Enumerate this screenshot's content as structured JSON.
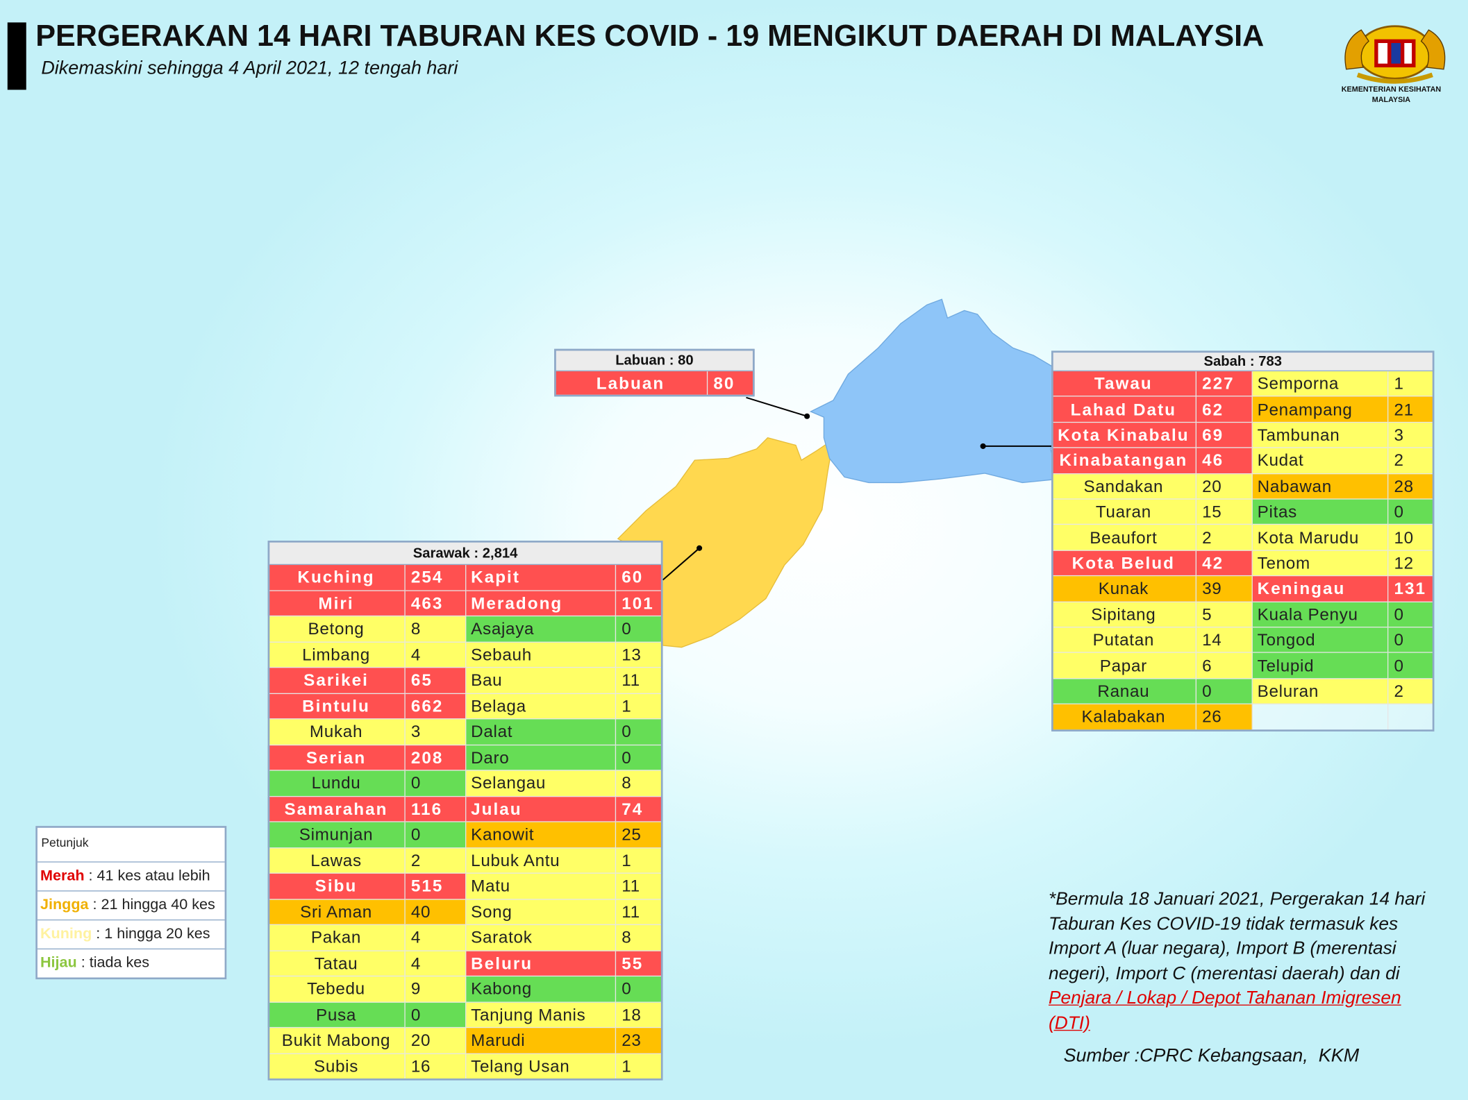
{
  "header": {
    "title": "PERGERAKAN 14 HARI TABURAN KES COVID - 19 MENGIKUT DAERAH DI MALAYSIA",
    "subtitle": "Dikemaskini sehingga 4 April 2021, 12 tengah hari",
    "logo_text": [
      "KEMENTERIAN KESIHATAN",
      "MALAYSIA"
    ]
  },
  "labuan": {
    "header": "Labuan : 80",
    "rows": [
      {
        "left": {
          "district": "Labuan",
          "cases": 80,
          "color": "#ff5050"
        }
      }
    ]
  },
  "sabah": {
    "header": "Sabah : 783",
    "rows": [
      {
        "left": {
          "district": "Tawau",
          "cases": 227,
          "color": "#ff5050"
        },
        "right": {
          "district": "Semporna",
          "cases": 1,
          "color": "#ffff66"
        }
      },
      {
        "left": {
          "district": "Lahad Datu",
          "cases": 62,
          "color": "#ff5050"
        },
        "right": {
          "district": "Penampang",
          "cases": 21,
          "color": "#ffc000"
        }
      },
      {
        "left": {
          "district": "Kota Kinabalu",
          "cases": 69,
          "color": "#ff5050"
        },
        "right": {
          "district": "Tambunan",
          "cases": 3,
          "color": "#ffff66"
        }
      },
      {
        "left": {
          "district": "Kinabatangan",
          "cases": 46,
          "color": "#ff5050"
        },
        "right": {
          "district": "Kudat",
          "cases": 2,
          "color": "#ffff66"
        }
      },
      {
        "left": {
          "district": "Sandakan",
          "cases": 20,
          "color": "#ffff66"
        },
        "right": {
          "district": "Nabawan",
          "cases": 28,
          "color": "#ffc000"
        }
      },
      {
        "left": {
          "district": "Tuaran",
          "cases": 15,
          "color": "#ffff66"
        },
        "right": {
          "district": "Pitas",
          "cases": 0,
          "color": "#66dd55"
        }
      },
      {
        "left": {
          "district": "Beaufort",
          "cases": 2,
          "color": "#ffff66"
        },
        "right": {
          "district": "Kota Marudu",
          "cases": 10,
          "color": "#ffff66"
        }
      },
      {
        "left": {
          "district": "Kota Belud",
          "cases": 42,
          "color": "#ff5050"
        },
        "right": {
          "district": "Tenom",
          "cases": 12,
          "color": "#ffff66"
        }
      },
      {
        "left": {
          "district": "Kunak",
          "cases": 39,
          "color": "#ffc000"
        },
        "right": {
          "district": "Keningau",
          "cases": 131,
          "color": "#ff5050"
        }
      },
      {
        "left": {
          "district": "Sipitang",
          "cases": 5,
          "color": "#ffff66"
        },
        "right": {
          "district": "Kuala Penyu",
          "cases": 0,
          "color": "#66dd55"
        }
      },
      {
        "left": {
          "district": "Putatan",
          "cases": 14,
          "color": "#ffff66"
        },
        "right": {
          "district": "Tongod",
          "cases": 0,
          "color": "#66dd55"
        }
      },
      {
        "left": {
          "district": "Papar",
          "cases": 6,
          "color": "#ffff66"
        },
        "right": {
          "district": "Telupid",
          "cases": 0,
          "color": "#66dd55"
        }
      },
      {
        "left": {
          "district": "Ranau",
          "cases": 0,
          "color": "#66dd55"
        },
        "right": {
          "district": "Beluran",
          "cases": 2,
          "color": "#ffff66"
        }
      },
      {
        "left": {
          "district": "Kalabakan",
          "cases": 26,
          "color": "#ffc000"
        }
      }
    ]
  },
  "sarawak": {
    "header": "Sarawak : 2,814",
    "rows": [
      {
        "left": {
          "district": "Kuching",
          "cases": 254,
          "color": "#ff5050"
        },
        "right": {
          "district": "Kapit",
          "cases": 60,
          "color": "#ff5050"
        }
      },
      {
        "left": {
          "district": "Miri",
          "cases": 463,
          "color": "#ff5050"
        },
        "right": {
          "district": "Meradong",
          "cases": 101,
          "color": "#ff5050"
        }
      },
      {
        "left": {
          "district": "Betong",
          "cases": 8,
          "color": "#ffff66"
        },
        "right": {
          "district": "Asajaya",
          "cases": 0,
          "color": "#66dd55"
        }
      },
      {
        "left": {
          "district": "Limbang",
          "cases": 4,
          "color": "#ffff66"
        },
        "right": {
          "district": "Sebauh",
          "cases": 13,
          "color": "#ffff66"
        }
      },
      {
        "left": {
          "district": "Sarikei",
          "cases": 65,
          "color": "#ff5050"
        },
        "right": {
          "district": "Bau",
          "cases": 11,
          "color": "#ffff66"
        }
      },
      {
        "left": {
          "district": "Bintulu",
          "cases": 662,
          "color": "#ff5050"
        },
        "right": {
          "district": "Belaga",
          "cases": 1,
          "color": "#ffff66"
        }
      },
      {
        "left": {
          "district": "Mukah",
          "cases": 3,
          "color": "#ffff66"
        },
        "right": {
          "district": "Dalat",
          "cases": 0,
          "color": "#66dd55"
        }
      },
      {
        "left": {
          "district": "Serian",
          "cases": 208,
          "color": "#ff5050"
        },
        "right": {
          "district": "Daro",
          "cases": 0,
          "color": "#66dd55"
        }
      },
      {
        "left": {
          "district": "Lundu",
          "cases": 0,
          "color": "#66dd55"
        },
        "right": {
          "district": "Selangau",
          "cases": 8,
          "color": "#ffff66"
        }
      },
      {
        "left": {
          "district": "Samarahan",
          "cases": 116,
          "color": "#ff5050"
        },
        "right": {
          "district": "Julau",
          "cases": 74,
          "color": "#ff5050"
        }
      },
      {
        "left": {
          "district": "Simunjan",
          "cases": 0,
          "color": "#66dd55"
        },
        "right": {
          "district": "Kanowit",
          "cases": 25,
          "color": "#ffc000"
        }
      },
      {
        "left": {
          "district": "Lawas",
          "cases": 2,
          "color": "#ffff66"
        },
        "right": {
          "district": "Lubuk Antu",
          "cases": 1,
          "color": "#ffff66"
        }
      },
      {
        "left": {
          "district": "Sibu",
          "cases": 515,
          "color": "#ff5050"
        },
        "right": {
          "district": "Matu",
          "cases": 11,
          "color": "#ffff66"
        }
      },
      {
        "left": {
          "district": "Sri Aman",
          "cases": 40,
          "color": "#ffc000"
        },
        "right": {
          "district": "Song",
          "cases": 11,
          "color": "#ffff66"
        }
      },
      {
        "left": {
          "district": "Pakan",
          "cases": 4,
          "color": "#ffff66"
        },
        "right": {
          "district": "Saratok",
          "cases": 8,
          "color": "#ffff66"
        }
      },
      {
        "left": {
          "district": "Tatau",
          "cases": 4,
          "color": "#ffff66"
        },
        "right": {
          "district": "Beluru",
          "cases": 55,
          "color": "#ff5050"
        }
      },
      {
        "left": {
          "district": "Tebedu",
          "cases": 9,
          "color": "#ffff66"
        },
        "right": {
          "district": "Kabong",
          "cases": 0,
          "color": "#66dd55"
        }
      },
      {
        "left": {
          "district": "Pusa",
          "cases": 0,
          "color": "#66dd55"
        },
        "right": {
          "district": "Tanjung Manis",
          "cases": 18,
          "color": "#ffff66"
        }
      },
      {
        "left": {
          "district": "Bukit Mabong",
          "cases": 20,
          "color": "#ffff66"
        },
        "right": {
          "district": "Marudi",
          "cases": 23,
          "color": "#ffc000"
        }
      },
      {
        "left": {
          "district": "Subis",
          "cases": 16,
          "color": "#ffff66"
        },
        "right": {
          "district": "Telang Usan",
          "cases": 1,
          "color": "#ffff66"
        }
      }
    ]
  },
  "legend": {
    "title": "Petunjuk",
    "items": [
      {
        "label": "Merah",
        "text": " : 41 kes atau lebih",
        "color": "#e00000"
      },
      {
        "label": "Jingga",
        "text": " : 21 hingga 40 kes",
        "color": "#f0b000"
      },
      {
        "label": "Kuning",
        "text": " : 1 hingga 20 kes",
        "color": "#fff2a0"
      },
      {
        "label": "Hijau",
        "text": " : tiada kes",
        "color": "#8cc63f"
      }
    ]
  },
  "note": {
    "lines": [
      "*Bermula 18 Januari 2021, Pergerakan 14 hari",
      "Taburan Kes COVID-19 tidak termasuk kes",
      "Import A (luar negara), Import B (merentasi",
      "negeri), Import C (merentasi daerah) dan di"
    ],
    "highlight_lines": [
      "Penjara / Lokap / Depot Tahanan Imigresen",
      "(DTI)"
    ]
  },
  "source": "Sumber :CPRC Kebangsaan,  KKM"
}
